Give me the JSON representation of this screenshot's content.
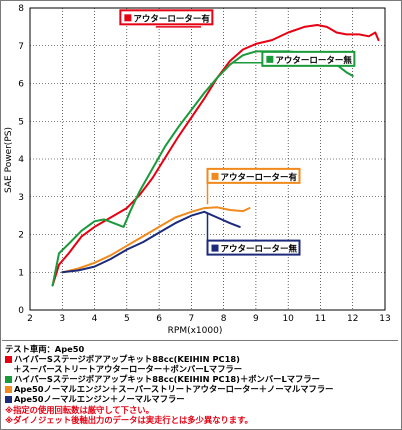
{
  "chart_data": {
    "type": "line",
    "xlabel": "RPM(x1000)",
    "ylabel": "SAE Power(PS)",
    "xlim": [
      2,
      13
    ],
    "ylim": [
      0,
      8
    ],
    "xticks": [
      "2",
      "3",
      "4",
      "5",
      "6",
      "7",
      "8",
      "9",
      "10",
      "11",
      "12",
      "13"
    ],
    "yticks": [
      "0",
      "1",
      "2",
      "3",
      "4",
      "5",
      "6",
      "7",
      "8"
    ],
    "grid": true,
    "series": [
      {
        "name": "アウターローター有",
        "color": "#e60012",
        "x": [
          2.7,
          2.9,
          3.2,
          3.6,
          4.0,
          4.5,
          5.0,
          5.4,
          5.8,
          6.2,
          6.6,
          7.0,
          7.4,
          7.8,
          8.2,
          8.6,
          9.0,
          9.5,
          10.0,
          10.5,
          10.9,
          11.2,
          11.5,
          11.8,
          12.2,
          12.5,
          12.7,
          12.8
        ],
        "y": [
          0.65,
          1.2,
          1.5,
          1.95,
          2.2,
          2.45,
          2.7,
          3.05,
          3.5,
          4.05,
          4.6,
          5.1,
          5.6,
          6.15,
          6.6,
          6.9,
          7.05,
          7.15,
          7.35,
          7.5,
          7.55,
          7.5,
          7.35,
          7.3,
          7.3,
          7.25,
          7.35,
          7.15
        ]
      },
      {
        "name": "アウターローター無",
        "color": "#1a9a3a",
        "x": [
          2.7,
          2.9,
          3.2,
          3.6,
          4.0,
          4.3,
          4.6,
          4.9,
          5.1,
          5.4,
          5.8,
          6.2,
          6.6,
          7.0,
          7.4,
          7.8,
          8.2,
          8.6,
          9.0,
          9.5,
          10.0,
          10.5,
          11.0,
          11.5,
          11.8,
          12.0
        ],
        "y": [
          0.65,
          1.5,
          1.75,
          2.1,
          2.35,
          2.4,
          2.3,
          2.2,
          2.6,
          3.15,
          3.75,
          4.35,
          4.85,
          5.3,
          5.75,
          6.15,
          6.5,
          6.75,
          6.85,
          6.85,
          6.85,
          6.8,
          6.7,
          6.5,
          6.3,
          6.2
        ]
      },
      {
        "name": "アウターローター有",
        "color": "#f08a1c",
        "x": [
          3.0,
          3.5,
          4.0,
          4.5,
          5.0,
          5.5,
          6.0,
          6.5,
          7.0,
          7.4,
          7.8,
          8.2,
          8.6,
          8.8
        ],
        "y": [
          1.0,
          1.1,
          1.25,
          1.45,
          1.7,
          1.95,
          2.2,
          2.45,
          2.6,
          2.7,
          2.72,
          2.65,
          2.62,
          2.7
        ]
      },
      {
        "name": "アウターローター無",
        "color": "#1c2a7a",
        "x": [
          3.0,
          3.5,
          4.0,
          4.5,
          5.0,
          5.5,
          6.0,
          6.5,
          7.0,
          7.4,
          7.8,
          8.2,
          8.5
        ],
        "y": [
          1.0,
          1.05,
          1.15,
          1.35,
          1.6,
          1.8,
          2.05,
          2.3,
          2.5,
          2.6,
          2.45,
          2.3,
          2.2
        ]
      }
    ]
  },
  "notes": {
    "title": "テスト車両：Ape50",
    "lines": [
      {
        "marker": "#e60012",
        "text": "ハイパーSステージボアアップキット88cc(KEIHIN PC18)"
      },
      {
        "marker": "",
        "text": "　＋スーパーストリートアウターローター＋ボンバーLマフラー"
      },
      {
        "marker": "#1a9a3a",
        "text": "ハイパーSステージボアアップキット88cc(KEIHIN PC18)＋ボンバーLマフラー"
      },
      {
        "marker": "#f08a1c",
        "text": "Ape50ノーマルエンジン＋スーパーストリートアウターローター＋ノーマルマフラー"
      },
      {
        "marker": "#1c2a7a",
        "text": "Ape50ノーマルエンジン＋ノーマルマフラー"
      }
    ],
    "warnings": [
      "※指定の使用回転数は厳守して下さい。",
      "※ダイノジェット後軸出力のデータは実走行とは多少異なります。"
    ]
  }
}
